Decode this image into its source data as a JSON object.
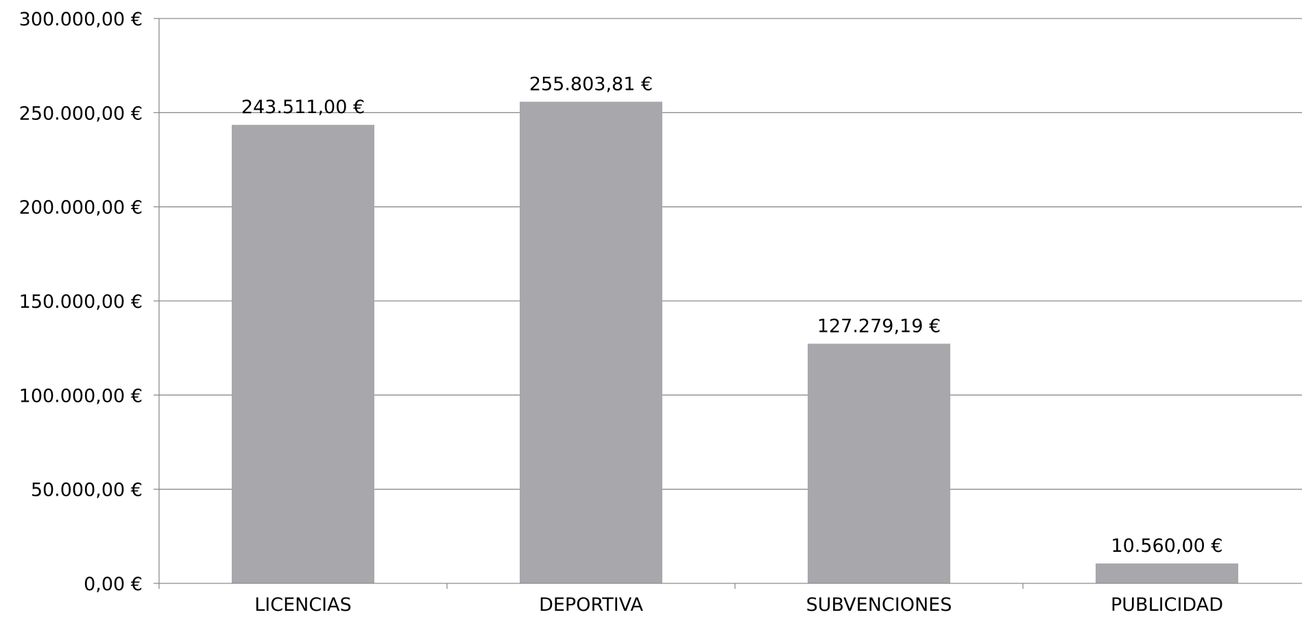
{
  "chart_data": {
    "type": "bar",
    "categories": [
      "LICENCIAS",
      "DEPORTIVA",
      "SUBVENCIONES",
      "PUBLICIDAD"
    ],
    "values": [
      243511.0,
      255803.81,
      127279.19,
      10560.0
    ],
    "data_labels": [
      "243.511,00 €",
      "255.803,81 €",
      "127.279,19 €",
      "10.560,00 €"
    ],
    "y_ticks": [
      0,
      50000,
      100000,
      150000,
      200000,
      250000,
      300000
    ],
    "y_tick_labels": [
      "0,00 €",
      "50.000,00 €",
      "100.000,00 €",
      "150.000,00 €",
      "200.000,00 €",
      "250.000,00 €",
      "300.000,00 €"
    ],
    "ylim": [
      0,
      300000
    ],
    "grid": true,
    "legend": "none",
    "bar_color": "#a8a7ab",
    "grid_color": "#8c8c8c"
  }
}
